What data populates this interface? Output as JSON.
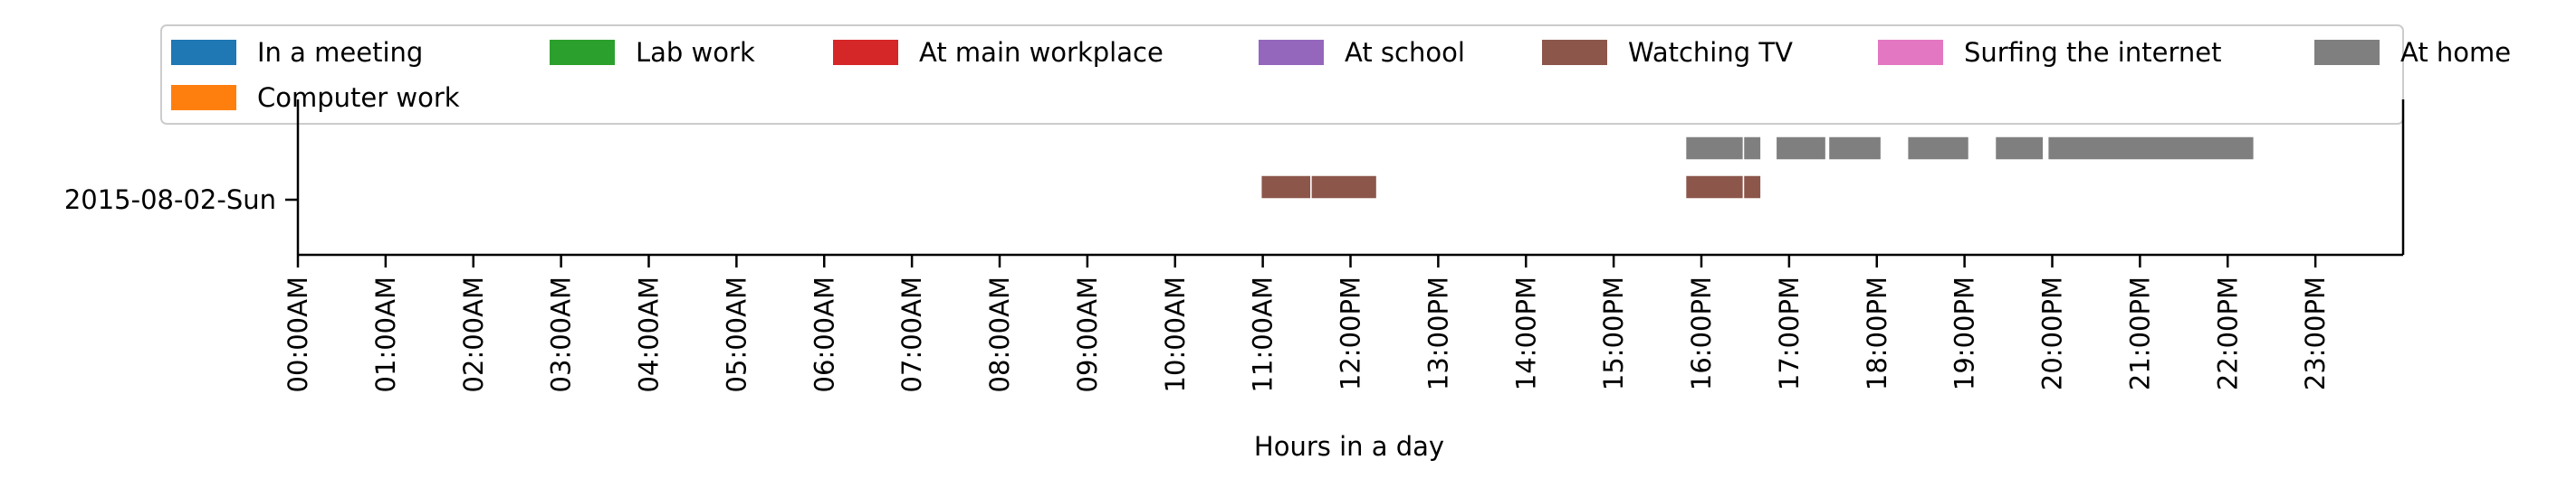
{
  "chart_data": {
    "type": "bar",
    "orientation": "horizontal-timeline",
    "xlabel": "Hours in a day",
    "ylabel": "",
    "xlim": [
      0,
      24
    ],
    "x_ticks": [
      {
        "value": 0,
        "label": "00:00AM"
      },
      {
        "value": 1,
        "label": "01:00AM"
      },
      {
        "value": 2,
        "label": "02:00AM"
      },
      {
        "value": 3,
        "label": "03:00AM"
      },
      {
        "value": 4,
        "label": "04:00AM"
      },
      {
        "value": 5,
        "label": "05:00AM"
      },
      {
        "value": 6,
        "label": "06:00AM"
      },
      {
        "value": 7,
        "label": "07:00AM"
      },
      {
        "value": 8,
        "label": "08:00AM"
      },
      {
        "value": 9,
        "label": "09:00AM"
      },
      {
        "value": 10,
        "label": "10:00AM"
      },
      {
        "value": 11,
        "label": "11:00AM"
      },
      {
        "value": 12,
        "label": "12:00PM"
      },
      {
        "value": 13,
        "label": "13:00PM"
      },
      {
        "value": 14,
        "label": "14:00PM"
      },
      {
        "value": 15,
        "label": "15:00PM"
      },
      {
        "value": 16,
        "label": "16:00PM"
      },
      {
        "value": 17,
        "label": "17:00PM"
      },
      {
        "value": 18,
        "label": "18:00PM"
      },
      {
        "value": 19,
        "label": "19:00PM"
      },
      {
        "value": 20,
        "label": "20:00PM"
      },
      {
        "value": 21,
        "label": "21:00PM"
      },
      {
        "value": 22,
        "label": "22:00PM"
      },
      {
        "value": 23,
        "label": "23:00PM"
      }
    ],
    "categories": [
      "2015-08-02-Sun"
    ],
    "grid": false,
    "legend_position": "top",
    "legend": [
      {
        "name": "In a meeting",
        "color": "#1f77b4"
      },
      {
        "name": "Lab work",
        "color": "#2ca02c"
      },
      {
        "name": "At main workplace",
        "color": "#d62728"
      },
      {
        "name": "At school",
        "color": "#9467bd"
      },
      {
        "name": "Watching TV",
        "color": "#8c564b"
      },
      {
        "name": "Surfing the internet",
        "color": "#e377c2"
      },
      {
        "name": "At home",
        "color": "#7f7f7f"
      },
      {
        "name": "Computer work",
        "color": "#ff7f0e"
      }
    ],
    "series": [
      {
        "name": "Watching TV",
        "color": "#8c564b",
        "category": "2015-08-02-Sun",
        "segments": [
          [
            10.98,
            11.55
          ],
          [
            11.55,
            12.3
          ],
          [
            15.82,
            16.48
          ],
          [
            16.48,
            16.68
          ]
        ]
      },
      {
        "name": "At home",
        "color": "#7f7f7f",
        "category": "2015-08-02-Sun",
        "segments": [
          [
            15.82,
            16.48
          ],
          [
            16.48,
            16.68
          ],
          [
            16.85,
            17.42
          ],
          [
            17.45,
            18.05
          ],
          [
            18.35,
            19.05
          ],
          [
            19.35,
            19.9
          ],
          [
            19.95,
            22.3
          ]
        ]
      }
    ]
  }
}
